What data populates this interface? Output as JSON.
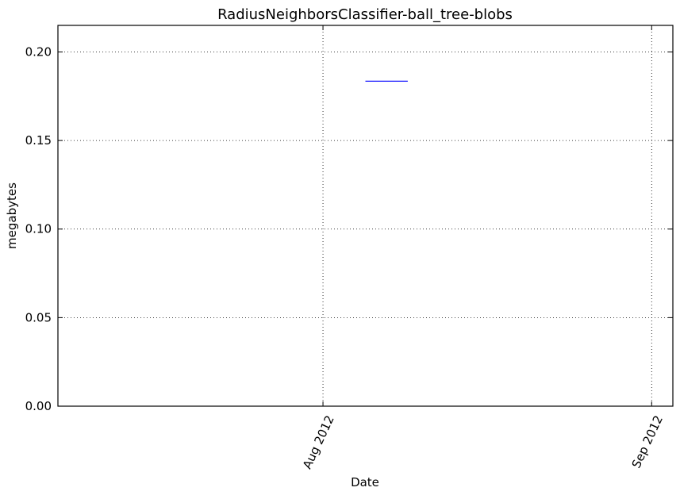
{
  "chart_data": {
    "type": "line",
    "title": "RadiusNeighborsClassifier-ball_tree-blobs",
    "xlabel": "Date",
    "ylabel": "megabytes",
    "x_axis_type": "date",
    "xlim": [
      "2012-07-07",
      "2012-09-03"
    ],
    "ylim": [
      0,
      0.215
    ],
    "yticks": [
      0.0,
      0.05,
      0.1,
      0.15,
      0.2
    ],
    "ytick_labels": [
      "0.00",
      "0.05",
      "0.10",
      "0.15",
      "0.20"
    ],
    "xticks": [
      "2012-08-01",
      "2012-09-01"
    ],
    "xtick_labels": [
      "Aug 2012",
      "Sep 2012"
    ],
    "xtick_rotation": 65,
    "grid": true,
    "series": [
      {
        "color": "#0000ff",
        "x": [
          "2012-08-05",
          "2012-08-09"
        ],
        "y": [
          0.1835,
          0.1835
        ]
      }
    ]
  }
}
